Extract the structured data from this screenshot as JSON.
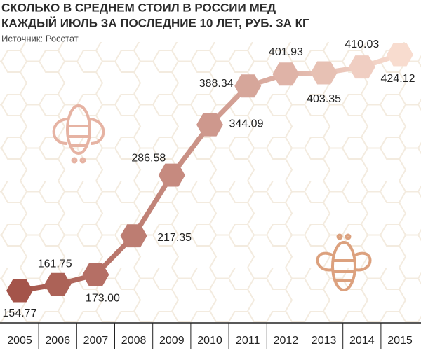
{
  "chart_data": {
    "type": "line",
    "title": [
      "СКОЛЬКО В СРЕДНЕМ СТОИЛ В РОССИИ МЕД",
      "КАЖДЫЙ ИЮЛЬ ЗА ПОСЛЕДНИЕ 10 ЛЕТ, РУБ. ЗА КГ"
    ],
    "subtitle": "Источник: Росстат",
    "categories": [
      "2005",
      "2006",
      "2007",
      "2008",
      "2009",
      "2010",
      "2011",
      "2012",
      "2013",
      "2014",
      "2015"
    ],
    "values": [
      154.77,
      161.75,
      173.0,
      217.35,
      286.58,
      344.09,
      388.34,
      401.93,
      403.35,
      410.03,
      424.12
    ],
    "value_labels": [
      "154.77",
      "161.75",
      "173.00",
      "217.35",
      "286.58",
      "344.09",
      "388.34",
      "401.93",
      "403.35",
      "410.03",
      "424.12"
    ],
    "colors": [
      "#a4544a",
      "#f8dccf"
    ]
  }
}
